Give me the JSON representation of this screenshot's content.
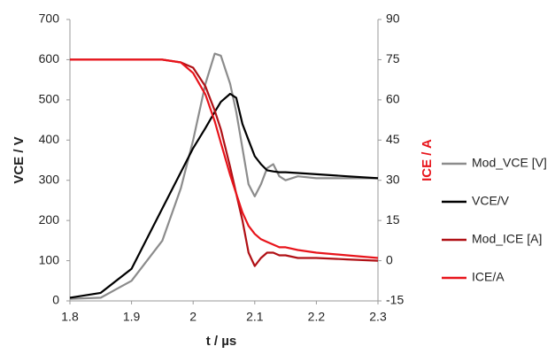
{
  "chart_data": {
    "type": "line",
    "x_label": "t / µs",
    "y_label": "VCE / V",
    "y2_label": "ICE / A",
    "y2_label_color": "#e8141b",
    "x": [
      1.8,
      1.85,
      1.9,
      1.95,
      1.98,
      2.0,
      2.02,
      2.035,
      2.045,
      2.06,
      2.07,
      2.08,
      2.09,
      2.1,
      2.11,
      2.12,
      2.13,
      2.14,
      2.15,
      2.17,
      2.2,
      2.25,
      2.3
    ],
    "series": [
      {
        "name": "Mod_VCE [V]",
        "color": "#8c8c8c",
        "values": [
          5,
          8,
          50,
          150,
          280,
          400,
          540,
          615,
          610,
          540,
          470,
          380,
          290,
          260,
          290,
          330,
          340,
          310,
          300,
          310,
          305,
          305,
          305
        ]
      },
      {
        "name": "VCE/V",
        "color": "#000000",
        "values": [
          8,
          20,
          80,
          230,
          320,
          380,
          430,
          470,
          495,
          515,
          505,
          440,
          400,
          360,
          340,
          325,
          322,
          320,
          320,
          318,
          315,
          310,
          305
        ]
      },
      {
        "name": "Mod_ICE [A]",
        "color": "#b01015",
        "axis": "y2",
        "values": [
          75,
          75,
          75,
          75,
          74,
          72,
          65,
          56,
          49,
          35,
          25,
          15,
          3,
          -2,
          1,
          3,
          3,
          2,
          2,
          1,
          1,
          0.5,
          0
        ]
      },
      {
        "name": "ICE/A",
        "color": "#e8141b",
        "axis": "y2",
        "values": [
          75,
          75,
          75,
          75,
          74,
          70,
          62,
          52,
          44,
          32,
          25,
          18,
          13,
          10,
          8,
          7,
          6,
          5,
          5,
          4,
          3,
          2,
          1
        ]
      }
    ],
    "xlim": [
      1.8,
      2.3
    ],
    "xticks": [
      1.8,
      1.9,
      2,
      2.1,
      2.2,
      2.3
    ],
    "ylim": [
      0,
      700
    ],
    "yticks": [
      0,
      100,
      200,
      300,
      400,
      500,
      600,
      700
    ],
    "y2lim": [
      -15,
      90
    ],
    "y2ticks": [
      -15,
      0,
      15,
      30,
      45,
      60,
      75,
      90
    ],
    "grid": false,
    "legend": "right"
  }
}
